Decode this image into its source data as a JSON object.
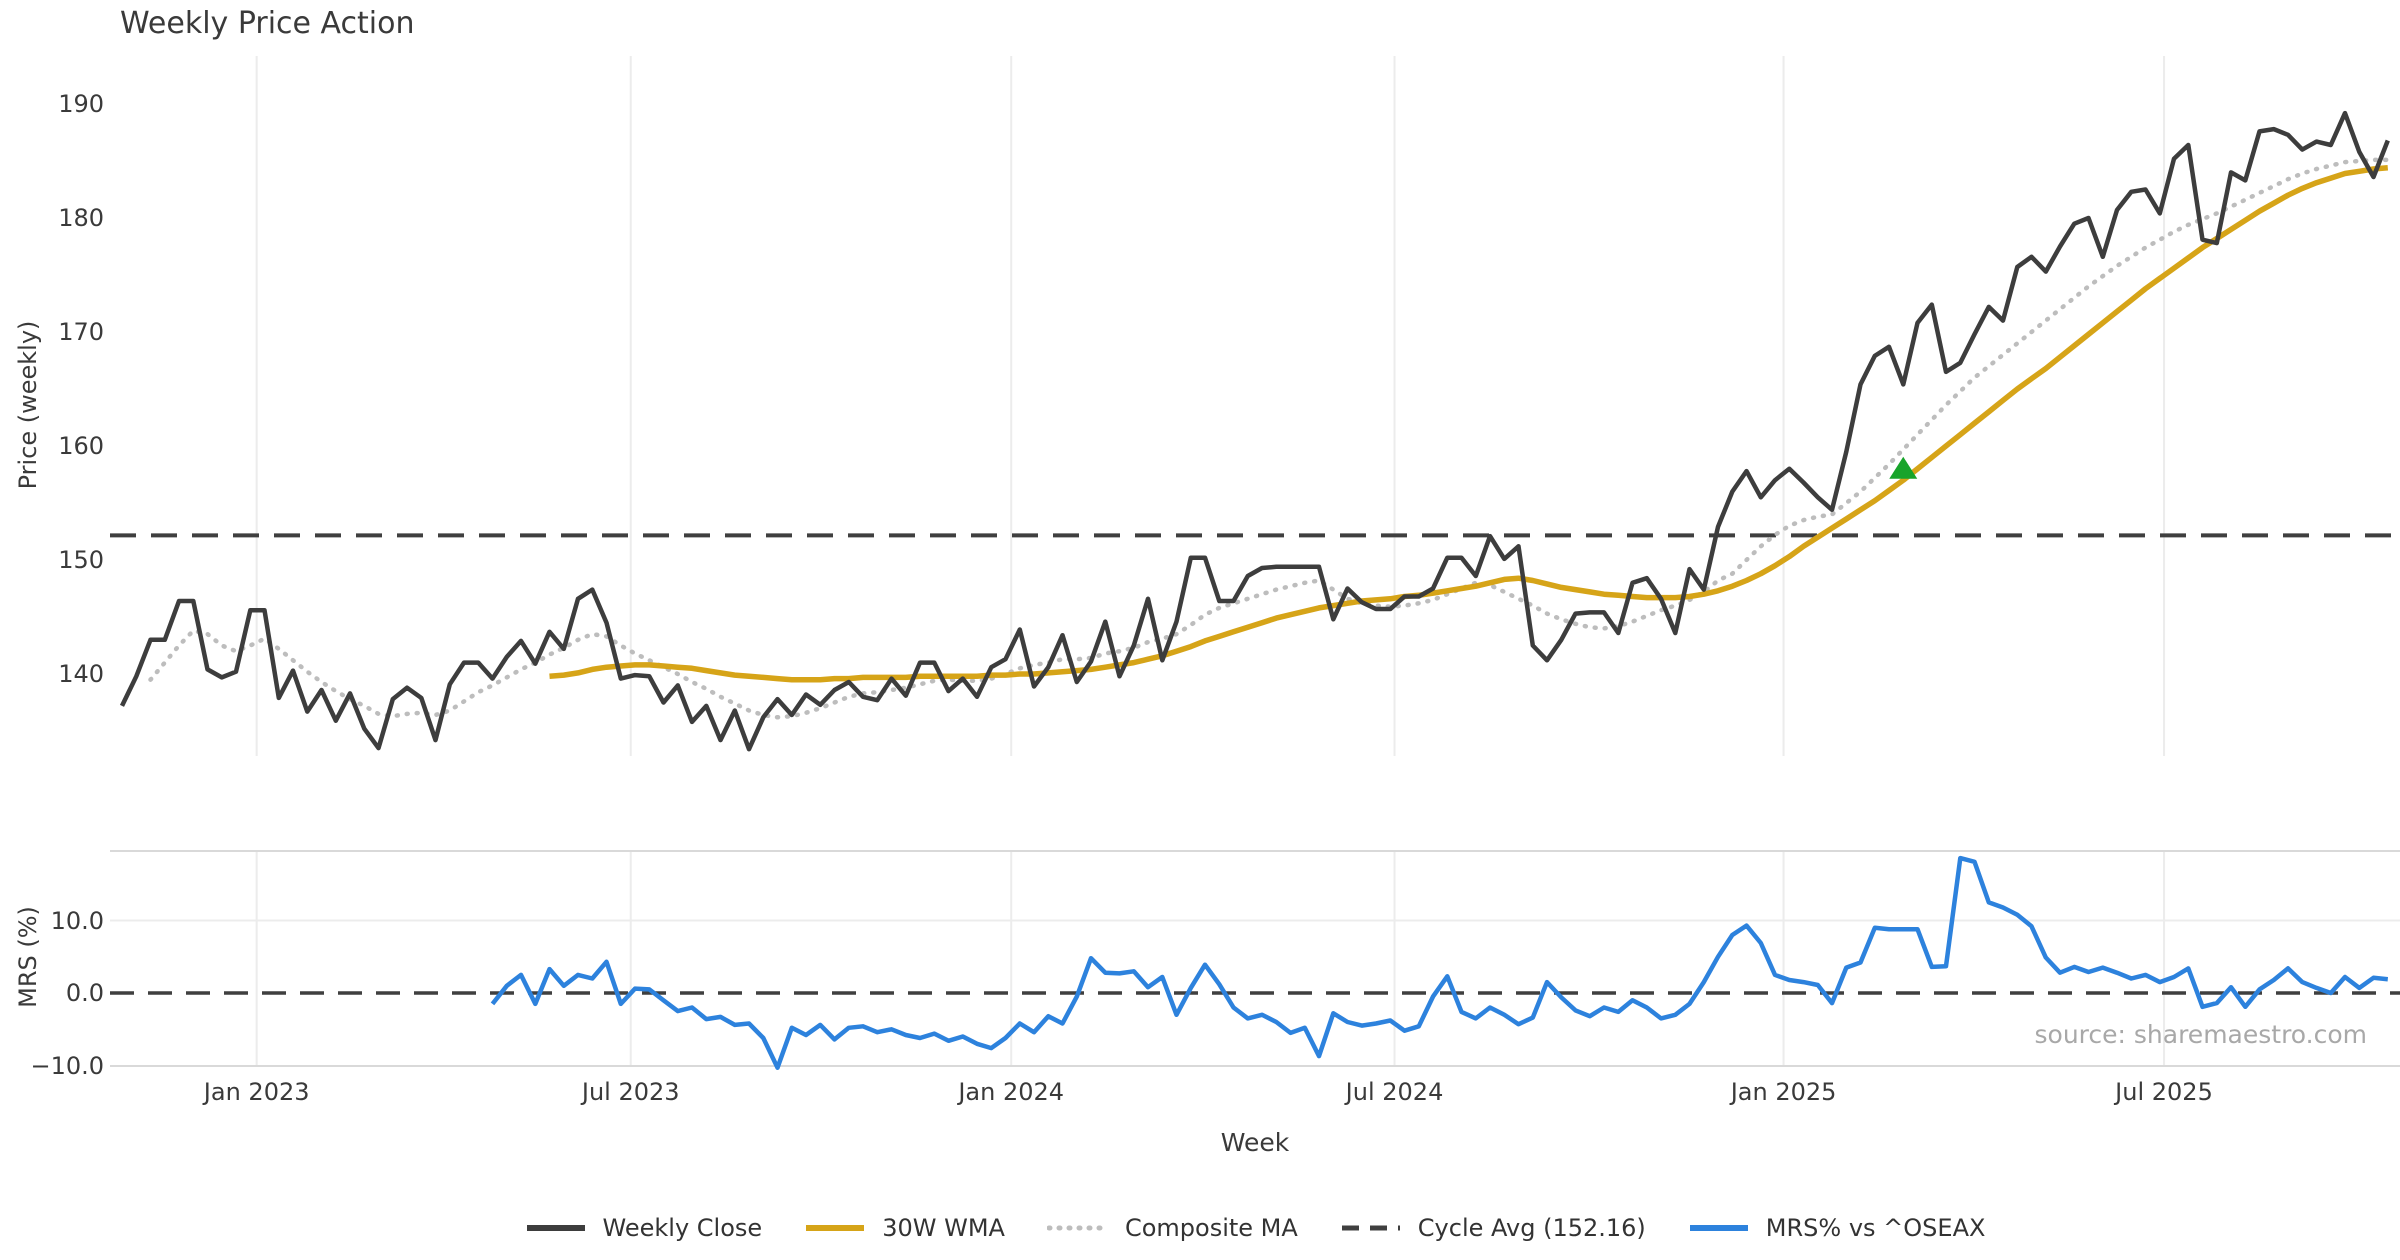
{
  "title": "Weekly Price Action",
  "source": "source: sharemaestro.com",
  "axes": {
    "price_label": "Price (weekly)",
    "mrs_label": "MRS (%)",
    "x_label": "Week"
  },
  "colors": {
    "weekly_close": "#3d3d3d",
    "wma30": "#d6a418",
    "composite_ma": "#bdbdbd",
    "cycle_avg": "#3f3f3f",
    "mrs": "#2d82dd",
    "buy_marker": "#18a42b",
    "gridline": "#ececec",
    "spine": "#d9d9d9",
    "tick_text": "#3a3a3a",
    "source_text": "#a8a8a8"
  },
  "legend": {
    "items": [
      {
        "label": "Weekly Close",
        "color": "#3d3d3d",
        "style": "solid"
      },
      {
        "label": "30W WMA",
        "color": "#d6a418",
        "style": "solid"
      },
      {
        "label": "Composite MA",
        "color": "#bdbdbd",
        "style": "dotted"
      },
      {
        "label": "Cycle Avg (152.16)",
        "color": "#3f3f3f",
        "style": "dashed"
      },
      {
        "label": "MRS% vs ^OSEAX",
        "color": "#2d82dd",
        "style": "solid"
      }
    ]
  },
  "chart_data": [
    {
      "type": "line",
      "title": "Weekly Price Action",
      "xlabel": "Week",
      "ylabel": "Price (weekly)",
      "x_unit": "week_index",
      "ylim": [
        132.8,
        194.2
      ],
      "grid": "vertical-only",
      "x_tick_positions": [
        9.45,
        35.7,
        62.4,
        89.3,
        116.6,
        143.3
      ],
      "x_tick_labels": [
        "Jan 2023",
        "Jul 2023",
        "Jan 2024",
        "Jul 2024",
        "Jan 2025",
        "Jul 2025"
      ],
      "y_tick_values": [
        140,
        150,
        160,
        170,
        180,
        190
      ],
      "y_tick_labels": [
        "140",
        "150",
        "160",
        "170",
        "180",
        "190"
      ],
      "series": [
        {
          "name": "Weekly Close",
          "style": "solid",
          "color": "#3d3d3d",
          "start_week": 0,
          "values": [
            137.2,
            139.8,
            143.0,
            143.0,
            146.4,
            146.4,
            140.4,
            139.7,
            140.2,
            145.6,
            145.6,
            137.9,
            140.3,
            136.7,
            138.6,
            135.9,
            138.3,
            135.2,
            133.5,
            137.8,
            138.8,
            137.9,
            134.2,
            139.1,
            141.0,
            141.0,
            139.6,
            141.5,
            142.9,
            140.9,
            143.7,
            142.2,
            146.6,
            147.4,
            144.5,
            139.6,
            139.9,
            139.8,
            137.5,
            139.0,
            135.8,
            137.2,
            134.2,
            136.8,
            133.4,
            136.2,
            137.8,
            136.4,
            138.2,
            137.3,
            138.6,
            139.3,
            138.0,
            137.7,
            139.6,
            138.1,
            141.0,
            141.0,
            138.5,
            139.6,
            138.0,
            140.6,
            141.3,
            143.9,
            138.9,
            140.6,
            143.4,
            139.3,
            141.1,
            144.6,
            139.8,
            142.5,
            146.6,
            141.2,
            144.6,
            150.2,
            150.2,
            146.4,
            146.4,
            148.6,
            149.3,
            149.4,
            149.4,
            149.4,
            149.4,
            144.8,
            147.5,
            146.3,
            145.7,
            145.7,
            146.8,
            146.8,
            147.5,
            150.2,
            150.2,
            148.6,
            152.1,
            150.1,
            151.2,
            142.5,
            141.2,
            143.0,
            145.3,
            145.4,
            145.4,
            143.6,
            148.0,
            148.4,
            146.6,
            143.6,
            149.2,
            147.4,
            152.9,
            156.0,
            157.8,
            155.5,
            157.0,
            158.0,
            156.8,
            155.5,
            154.4,
            159.5,
            165.4,
            167.9,
            168.7,
            165.4,
            170.8,
            172.4,
            166.5,
            167.3,
            169.8,
            172.2,
            171.0,
            175.7,
            176.6,
            175.3,
            177.5,
            179.5,
            180.0,
            176.6,
            180.7,
            182.3,
            182.5,
            180.4,
            185.2,
            186.4,
            178.1,
            177.8,
            184.0,
            183.3,
            187.6,
            187.8,
            187.3,
            186.0,
            186.7,
            186.4,
            189.2,
            185.8,
            183.6,
            186.8
          ]
        },
        {
          "name": "30W WMA",
          "style": "solid",
          "color": "#d6a418",
          "start_week": 30,
          "values": [
            139.8,
            139.9,
            140.1,
            140.4,
            140.6,
            140.7,
            140.8,
            140.8,
            140.7,
            140.6,
            140.5,
            140.3,
            140.1,
            139.9,
            139.8,
            139.7,
            139.6,
            139.5,
            139.5,
            139.5,
            139.6,
            139.6,
            139.7,
            139.7,
            139.7,
            139.7,
            139.8,
            139.8,
            139.8,
            139.8,
            139.8,
            139.9,
            139.9,
            140.0,
            140.0,
            140.1,
            140.2,
            140.3,
            140.4,
            140.6,
            140.8,
            141.0,
            141.3,
            141.6,
            142.0,
            142.4,
            142.9,
            143.3,
            143.7,
            144.1,
            144.5,
            144.9,
            145.2,
            145.5,
            145.8,
            146.0,
            146.2,
            146.4,
            146.5,
            146.6,
            146.8,
            146.9,
            147.1,
            147.3,
            147.5,
            147.7,
            148.0,
            148.3,
            148.4,
            148.2,
            147.9,
            147.6,
            147.4,
            147.2,
            147.0,
            146.9,
            146.8,
            146.7,
            146.7,
            146.7,
            146.8,
            147.0,
            147.3,
            147.7,
            148.2,
            148.8,
            149.5,
            150.3,
            151.2,
            152.0,
            152.8,
            153.6,
            154.4,
            155.2,
            156.1,
            157.0,
            158.0,
            159.0,
            160.0,
            161.0,
            162.0,
            163.0,
            164.0,
            165.0,
            165.9,
            166.8,
            167.8,
            168.8,
            169.8,
            170.8,
            171.8,
            172.8,
            173.8,
            174.7,
            175.6,
            176.5,
            177.4,
            178.2,
            179.0,
            179.8,
            180.6,
            181.3,
            182.0,
            182.6,
            183.1,
            183.5,
            183.9,
            184.1,
            184.3,
            184.4
          ]
        },
        {
          "name": "Composite MA",
          "style": "dotted",
          "color": "#bdbdbd",
          "start_week": 2,
          "values": [
            139.5,
            141.0,
            142.5,
            143.8,
            143.5,
            142.5,
            142.0,
            142.5,
            143.1,
            142.2,
            141.2,
            140.2,
            139.3,
            138.5,
            137.8,
            137.2,
            136.5,
            136.3,
            136.5,
            136.6,
            136.4,
            136.8,
            137.6,
            138.4,
            139.0,
            139.7,
            140.4,
            141.0,
            141.7,
            142.3,
            143.0,
            143.5,
            143.3,
            142.5,
            141.8,
            141.2,
            140.6,
            140.0,
            139.3,
            138.7,
            138.0,
            137.4,
            136.8,
            136.4,
            136.2,
            136.3,
            136.6,
            137.0,
            137.5,
            138.0,
            138.3,
            138.4,
            138.6,
            138.8,
            139.1,
            139.4,
            139.5,
            139.4,
            139.4,
            139.6,
            140.0,
            140.5,
            140.8,
            141.0,
            141.3,
            141.3,
            141.4,
            141.8,
            142.0,
            142.3,
            142.8,
            143.1,
            143.5,
            144.3,
            145.2,
            145.8,
            146.2,
            146.6,
            147.0,
            147.4,
            147.7,
            148.0,
            148.2,
            147.4,
            146.6,
            146.2,
            146.0,
            145.9,
            146.0,
            146.2,
            146.5,
            147.0,
            147.5,
            148.0,
            147.8,
            147.2,
            146.6,
            146.0,
            145.3,
            144.8,
            144.4,
            144.1,
            144.0,
            144.2,
            144.6,
            145.1,
            145.6,
            146.0,
            146.5,
            147.2,
            148.2,
            148.8,
            150.0,
            151.2,
            152.2,
            153.0,
            153.5,
            153.8,
            154.0,
            155.0,
            156.0,
            157.2,
            158.4,
            159.7,
            161.0,
            162.3,
            163.6,
            164.8,
            166.0,
            167.0,
            168.0,
            169.0,
            170.0,
            171.0,
            172.0,
            173.0,
            174.0,
            174.9,
            175.8,
            176.6,
            177.4,
            178.1,
            178.8,
            179.4,
            179.9,
            180.4,
            181.0,
            181.6,
            182.2,
            182.8,
            183.4,
            183.9,
            184.3,
            184.6,
            184.9,
            185.0,
            185.1,
            185.1
          ]
        },
        {
          "name": "Cycle Avg",
          "style": "dashed",
          "color": "#3f3f3f",
          "constant_value": 152.16
        }
      ],
      "markers": [
        {
          "name": "buy-signal",
          "shape": "triangle-up",
          "color": "#18a42b",
          "week": 125,
          "price": 158.0
        }
      ]
    },
    {
      "type": "line",
      "ylabel": "MRS (%)",
      "x_unit": "week_index",
      "ylim": [
        -10.1,
        19.6
      ],
      "y_tick_values": [
        10,
        0,
        -10
      ],
      "y_tick_labels": [
        "10.0",
        "0.0",
        "−10.0"
      ],
      "series": [
        {
          "name": "MRS% vs ^OSEAX",
          "style": "solid",
          "color": "#2d82dd",
          "start_week": 26,
          "values": [
            -1.5,
            1.0,
            2.5,
            -1.5,
            3.3,
            1.0,
            2.5,
            2.0,
            4.3,
            -1.5,
            0.6,
            0.5,
            -1.0,
            -2.5,
            -2.0,
            -3.6,
            -3.3,
            -4.4,
            -4.2,
            -6.2,
            -10.3,
            -4.8,
            -5.8,
            -4.4,
            -6.4,
            -4.8,
            -4.6,
            -5.4,
            -5.0,
            -5.8,
            -6.2,
            -5.6,
            -6.6,
            -6.0,
            -7.0,
            -7.6,
            -6.2,
            -4.2,
            -5.4,
            -3.2,
            -4.2,
            -0.5,
            4.8,
            2.8,
            2.7,
            3.0,
            0.8,
            2.2,
            -3.0,
            0.7,
            3.9,
            1.2,
            -2.0,
            -3.5,
            -3.0,
            -4.0,
            -5.5,
            -4.8,
            -8.7,
            -2.8,
            -4.0,
            -4.5,
            -4.2,
            -3.8,
            -5.2,
            -4.6,
            -0.5,
            2.3,
            -2.6,
            -3.5,
            -2.0,
            -3.0,
            -4.3,
            -3.4,
            1.5,
            -0.6,
            -2.4,
            -3.2,
            -2.0,
            -2.6,
            -1.0,
            -2.0,
            -3.5,
            -3.0,
            -1.5,
            1.5,
            5.0,
            8.0,
            9.3,
            6.9,
            2.5,
            1.8,
            1.5,
            1.1,
            -1.4,
            3.5,
            4.2,
            9.0,
            8.8,
            8.8,
            8.8,
            3.6,
            3.7,
            18.6,
            18.1,
            12.5,
            11.8,
            10.8,
            9.2,
            4.9,
            2.8,
            3.6,
            2.9,
            3.5,
            2.8,
            2.0,
            2.5,
            1.5,
            2.2,
            3.4,
            -1.9,
            -1.4,
            0.8,
            -1.9,
            0.5,
            1.8,
            3.4,
            1.5,
            0.7,
            0.0,
            2.2,
            0.7,
            2.1,
            1.9
          ]
        },
        {
          "name": "Zero line",
          "style": "dashed",
          "color": "#3f3f3f",
          "constant_value": 0
        }
      ]
    }
  ]
}
